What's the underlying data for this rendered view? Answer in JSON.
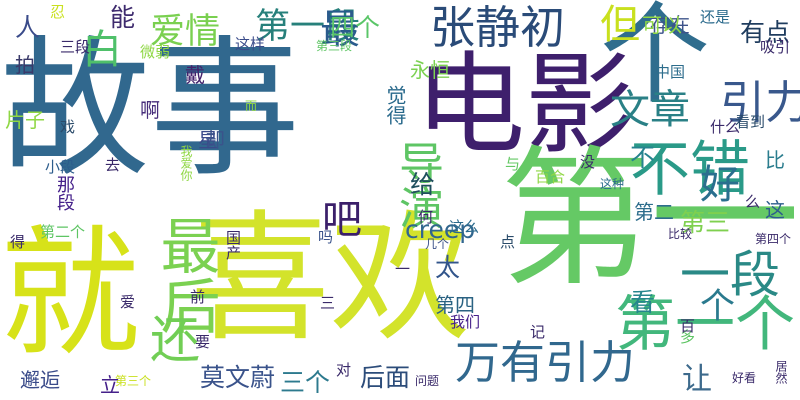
{
  "wordcloud": {
    "words": [
      {
        "text": "故事",
        "color": "#31688e",
        "vertical": false
      },
      {
        "text": "电影",
        "color": "#3e1f6c",
        "vertical": false
      },
      {
        "text": "喜欢",
        "color": "#d3e32b",
        "vertical": false
      },
      {
        "text": "第一",
        "color": "#65c965",
        "vertical": false
      },
      {
        "text": "就",
        "color": "#d7e219",
        "vertical": false
      },
      {
        "text": "个",
        "color": "#2f6d8e",
        "vertical": false
      },
      {
        "text": "张静初",
        "color": "#2a4b78",
        "vertical": false
      },
      {
        "text": "不错",
        "color": "#2a9a88",
        "vertical": false
      },
      {
        "text": "第一个",
        "color": "#42b77c",
        "vertical": false
      },
      {
        "text": "引力",
        "color": "#39588c",
        "vertical": false
      },
      {
        "text": "文章",
        "color": "#2a8086",
        "vertical": false
      },
      {
        "text": "万有引力",
        "color": "#31688e",
        "vertical": false
      },
      {
        "text": "爱情",
        "color": "#7ad050",
        "vertical": false
      },
      {
        "text": "第一段",
        "color": "#27807b",
        "vertical": false
      },
      {
        "text": "最后",
        "color": "#7bd151",
        "vertical": true
      },
      {
        "text": "还",
        "color": "#71ce55",
        "vertical": false
      },
      {
        "text": "导演",
        "color": "#5ec564",
        "vertical": true
      },
      {
        "text": "一段",
        "color": "#2a8986",
        "vertical": false
      },
      {
        "text": "好",
        "color": "#2a6f8e",
        "vertical": false
      },
      {
        "text": "白",
        "color": "#4fc06a",
        "vertical": false
      },
      {
        "text": "最",
        "color": "#2a5b8c",
        "vertical": false
      },
      {
        "text": "莫文蔚",
        "color": "#3a538b",
        "vertical": false
      },
      {
        "text": "看",
        "color": "#26858d",
        "vertical": false
      },
      {
        "text": "第三",
        "color": "#7fd04f",
        "vertical": false
      },
      {
        "text": "吧",
        "color": "#3b1f6a",
        "vertical": false
      },
      {
        "text": "三个",
        "color": "#2d7a8e",
        "vertical": false
      },
      {
        "text": "后面",
        "color": "#2c4c7a",
        "vertical": false
      },
      {
        "text": "但",
        "color": "#c9e01e",
        "vertical": false
      },
      {
        "text": "有点",
        "color": "#1f3c5e",
        "vertical": false
      },
      {
        "text": "四个",
        "color": "#5ac668",
        "vertical": false
      },
      {
        "text": "creep",
        "color": "#31668e",
        "vertical": false
      },
      {
        "text": "给",
        "color": "#1f4f5e",
        "vertical": false
      },
      {
        "text": "太",
        "color": "#32558b",
        "vertical": false
      },
      {
        "text": "第四",
        "color": "#2a6282",
        "vertical": false
      },
      {
        "text": "个",
        "color": "#2a7a8e",
        "vertical": false
      },
      {
        "text": "让",
        "color": "#3d6a8c",
        "vertical": false
      },
      {
        "text": "能",
        "color": "#3e2b6e",
        "vertical": false
      },
      {
        "text": "人",
        "color": "#3a4b8a",
        "vertical": false
      },
      {
        "text": "拍",
        "color": "#3a3a6a",
        "vertical": false
      },
      {
        "text": "戴",
        "color": "#44226c",
        "vertical": false
      },
      {
        "text": "啊",
        "color": "#472d7b",
        "vertical": false
      },
      {
        "text": "星",
        "color": "#3a4a8a",
        "vertical": false
      },
      {
        "text": "永恒",
        "color": "#7bd151",
        "vertical": false
      },
      {
        "text": "邂逅",
        "color": "#3a4b8a",
        "vertical": false
      },
      {
        "text": "立",
        "color": "#45208a",
        "vertical": false
      },
      {
        "text": "片子",
        "color": "#8fd744",
        "vertical": false
      },
      {
        "text": "不",
        "color": "#25838e",
        "vertical": false
      },
      {
        "text": "比",
        "color": "#2b7d8e",
        "vertical": false
      },
      {
        "text": "这",
        "color": "#2d5d8c",
        "vertical": false
      },
      {
        "text": "第二",
        "color": "#2d6d8c",
        "vertical": false
      },
      {
        "text": "存在",
        "color": "#3d538a",
        "vertical": false
      },
      {
        "text": "可以",
        "color": "#8fd744",
        "vertical": false
      },
      {
        "text": "还是",
        "color": "#2a6a8c",
        "vertical": false
      },
      {
        "text": "吸引",
        "color": "#3a2a6a",
        "vertical": false
      },
      {
        "text": "第三段",
        "color": "#5ec564",
        "vertical": false
      },
      {
        "text": "这样",
        "color": "#3a4b8a",
        "vertical": false
      },
      {
        "text": "忍",
        "color": "#c9e01e",
        "vertical": false
      },
      {
        "text": "三段",
        "color": "#3a2a6a",
        "vertical": false
      },
      {
        "text": "微弱",
        "color": "#8fd744",
        "vertical": false
      },
      {
        "text": "中国",
        "color": "#2d6d8c",
        "vertical": false
      },
      {
        "text": "看到",
        "color": "#2a4b6a",
        "vertical": false
      },
      {
        "text": "什么",
        "color": "#3a2a6a",
        "vertical": false
      },
      {
        "text": "觉得",
        "color": "#2a6a8c",
        "vertical": true
      },
      {
        "text": "却",
        "color": "#3a538b",
        "vertical": false
      },
      {
        "text": "我爱你",
        "color": "#8fd744",
        "vertical": true
      },
      {
        "text": "小段",
        "color": "#2d5d8c",
        "vertical": false
      },
      {
        "text": "那段",
        "color": "#45208a",
        "vertical": true
      },
      {
        "text": "去",
        "color": "#3a2a6a",
        "vertical": false
      },
      {
        "text": "戏",
        "color": "#2a4b6a",
        "vertical": false
      },
      {
        "text": "与",
        "color": "#65c965",
        "vertical": false
      },
      {
        "text": "百合",
        "color": "#8fd744",
        "vertical": false
      },
      {
        "text": "没",
        "color": "#3a2a6a",
        "vertical": false
      },
      {
        "text": "这么",
        "color": "#2a6a8c",
        "vertical": false
      },
      {
        "text": "这种",
        "color": "#2d6d8c",
        "vertical": false
      },
      {
        "text": "第二个",
        "color": "#5ec564",
        "vertical": false
      },
      {
        "text": "国产",
        "color": "#3a2a6a",
        "vertical": true
      },
      {
        "text": "吗",
        "color": "#3a538b",
        "vertical": false
      },
      {
        "text": "何",
        "color": "#3a2a6a",
        "vertical": false
      },
      {
        "text": "几个",
        "color": "#3d538a",
        "vertical": false
      },
      {
        "text": "点",
        "color": "#2a4b6a",
        "vertical": false
      },
      {
        "text": "比较",
        "color": "#3a2a6a",
        "vertical": false
      },
      {
        "text": "第四个",
        "color": "#3a2a6a",
        "vertical": false
      },
      {
        "text": "得",
        "color": "#3a2a6a",
        "vertical": false
      },
      {
        "text": "爱",
        "color": "#3a2a6a",
        "vertical": false
      },
      {
        "text": "前",
        "color": "#3a2a6a",
        "vertical": false
      },
      {
        "text": "我们",
        "color": "#45208a",
        "vertical": false
      },
      {
        "text": "记",
        "color": "#3a2a6a",
        "vertical": false
      },
      {
        "text": "多",
        "color": "#5ec564",
        "vertical": false
      },
      {
        "text": "百",
        "color": "#3a2a6a",
        "vertical": false
      },
      {
        "text": "要",
        "color": "#3a2a6a",
        "vertical": false
      },
      {
        "text": "三",
        "color": "#3a2a6a",
        "vertical": false
      },
      {
        "text": "对",
        "color": "#3a2a6a",
        "vertical": false
      },
      {
        "text": "问题",
        "color": "#3a2a6a",
        "vertical": false
      },
      {
        "text": "第三个",
        "color": "#c9e01e",
        "vertical": false
      },
      {
        "text": "好看",
        "color": "#3a2a6a",
        "vertical": false
      },
      {
        "text": "居然",
        "color": "#3a2a6a",
        "vertical": true
      },
      {
        "text": "么",
        "color": "#3a2a6a",
        "vertical": false
      },
      {
        "text": "而",
        "color": "#8fd744",
        "vertical": false
      },
      {
        "text": "一",
        "color": "#3a2a6a",
        "vertical": false
      }
    ]
  }
}
